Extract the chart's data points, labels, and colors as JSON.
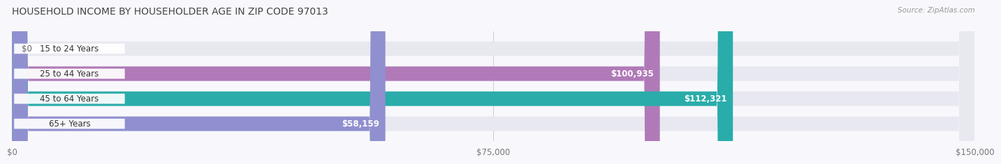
{
  "title": "HOUSEHOLD INCOME BY HOUSEHOLDER AGE IN ZIP CODE 97013",
  "source": "Source: ZipAtlas.com",
  "categories": [
    "15 to 24 Years",
    "25 to 44 Years",
    "45 to 64 Years",
    "65+ Years"
  ],
  "values": [
    0,
    100935,
    112321,
    58159
  ],
  "bar_colors": [
    "#a8b8e8",
    "#b07ab8",
    "#2aacaa",
    "#9090d0"
  ],
  "track_color": "#e8e8f0",
  "xlim": [
    0,
    150000
  ],
  "xticks": [
    0,
    75000,
    150000
  ],
  "xtick_labels": [
    "$0",
    "$75,000",
    "$150,000"
  ],
  "value_labels": [
    "$0",
    "$100,935",
    "$112,321",
    "$58,159"
  ],
  "background_color": "#f8f8fc",
  "title_fontsize": 10,
  "source_fontsize": 7.5,
  "label_fontsize": 8.5,
  "bar_height": 0.58,
  "bar_label_inside_threshold": 20000,
  "rounding_size": 2500
}
